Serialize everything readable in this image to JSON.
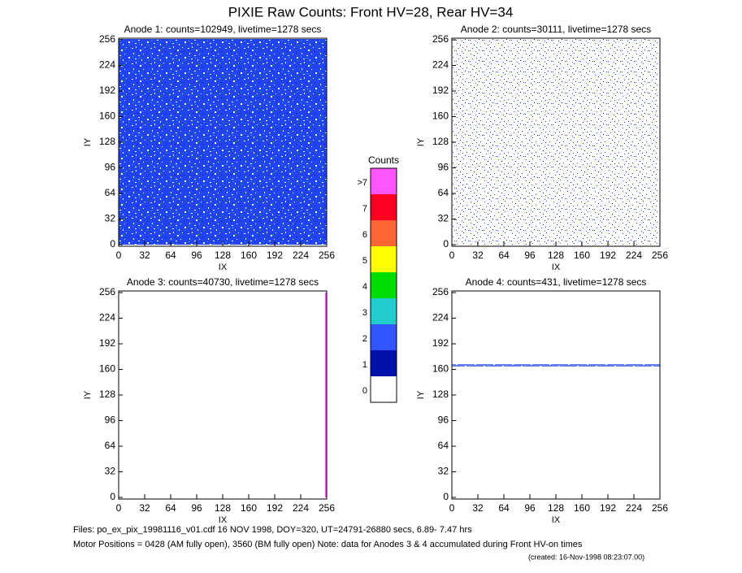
{
  "title": "PIXIE Raw Counts:  Front HV=28, Rear HV=34",
  "chart_data": [
    {
      "type": "heatmap",
      "title": "Anode 1: counts=102949, livetime=1278 secs",
      "xlabel": "IX",
      "ylabel": "IY",
      "xlim": [
        0,
        256
      ],
      "ylim": [
        0,
        256
      ],
      "xticks": [
        0,
        32,
        64,
        96,
        128,
        160,
        192,
        224,
        256
      ],
      "yticks": [
        0,
        32,
        64,
        96,
        128,
        160,
        192,
        224,
        256
      ]
    },
    {
      "type": "heatmap",
      "title": "Anode 2: counts=30111, livetime=1278 secs",
      "xlabel": "IX",
      "ylabel": "IY",
      "xlim": [
        0,
        256
      ],
      "ylim": [
        0,
        256
      ],
      "xticks": [
        0,
        32,
        64,
        96,
        128,
        160,
        192,
        224,
        256
      ],
      "yticks": [
        0,
        32,
        64,
        96,
        128,
        160,
        192,
        224,
        256
      ]
    },
    {
      "type": "heatmap",
      "title": "Anode 3: counts=40730, livetime=1278 secs",
      "xlabel": "IX",
      "ylabel": "IY",
      "xlim": [
        0,
        256
      ],
      "ylim": [
        0,
        256
      ],
      "xticks": [
        0,
        32,
        64,
        96,
        128,
        160,
        192,
        224,
        256
      ],
      "yticks": [
        0,
        32,
        64,
        96,
        128,
        160,
        192,
        224,
        256
      ]
    },
    {
      "type": "heatmap",
      "title": "Anode 4: counts=431, livetime=1278 secs",
      "xlabel": "IX",
      "ylabel": "IY",
      "xlim": [
        0,
        256
      ],
      "ylim": [
        0,
        256
      ],
      "xticks": [
        0,
        32,
        64,
        96,
        128,
        160,
        192,
        224,
        256
      ],
      "yticks": [
        0,
        32,
        64,
        96,
        128,
        160,
        192,
        224,
        256
      ]
    }
  ],
  "colorbar": {
    "title": "Counts",
    "levels": [
      {
        "label": ">7",
        "color": "#ff55ff"
      },
      {
        "label": "7",
        "color": "#ff0022"
      },
      {
        "label": "6",
        "color": "#ff6633"
      },
      {
        "label": "5",
        "color": "#ffff00"
      },
      {
        "label": "4",
        "color": "#00dd00"
      },
      {
        "label": "3",
        "color": "#22cccc"
      },
      {
        "label": "2",
        "color": "#3355ff"
      },
      {
        "label": "1",
        "color": "#0011aa"
      },
      {
        "label": "0",
        "color": "#ffffff"
      }
    ]
  },
  "footer": {
    "files": "Files: po_ex_pix_19981116_v01.cdf    16 NOV 1998, DOY=320, UT=24791-26880 secs,  6.89- 7.47 hrs",
    "motor": "Motor Positions = 0428 (AM fully open), 3560 (BM fully open)    Note: data for Anodes 3 & 4 accumulated during Front HV-on times",
    "created": "(created: 16-Nov-1998 08:23:07.00)"
  }
}
